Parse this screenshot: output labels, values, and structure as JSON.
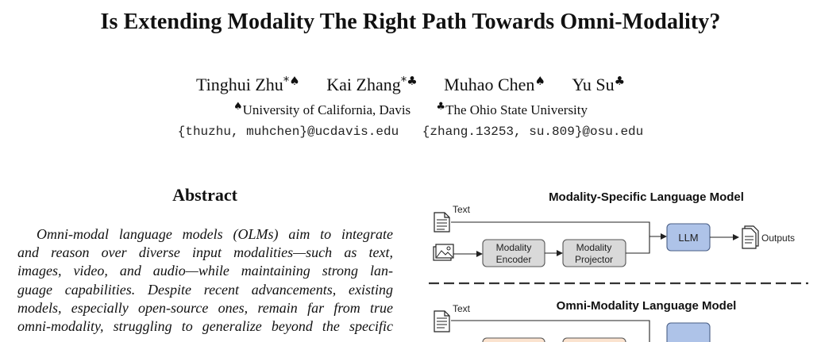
{
  "paper": {
    "title": "Is Extending Modality The Right Path Towards Omni-Modality?",
    "authors": [
      {
        "name": "Tinghui Zhu",
        "marks": "*♠"
      },
      {
        "name": "Kai Zhang",
        "marks": "*♣"
      },
      {
        "name": "Muhao Chen",
        "marks": "♠"
      },
      {
        "name": "Yu Su",
        "marks": "♣"
      }
    ],
    "affiliations": [
      {
        "mark": "♠",
        "name": "University of California, Davis"
      },
      {
        "mark": "♣",
        "name": "The Ohio State University"
      }
    ],
    "emails": [
      "{thuzhu, muhchen}@ucdavis.edu",
      "{zhang.13253, su.809}@osu.edu"
    ]
  },
  "abstract": {
    "heading": "Abstract",
    "lines": [
      "Omni-modal language models (OLMs) aim to integrate",
      "and reason over diverse input modalities—such as text,",
      "images, video, and audio—while maintaining strong lan-",
      "guage capabilities. Despite recent advancements, existing",
      "models, especially open-source ones, remain far from true",
      "omni-modality, struggling to generalize beyond the specific"
    ]
  },
  "figure": {
    "top_title": "Modality-Specific Language Model",
    "bottom_title": "Omni-Modality Language Model",
    "text_label": "Text",
    "encoder_label": [
      "Modality",
      "Encoder"
    ],
    "projector_label": [
      "Modality",
      "Projector"
    ],
    "llm_label": "LLM",
    "outputs_label": "Outputs",
    "colors": {
      "encoder_fill": "#d9d9d9",
      "llm_fill": "#aec3e8",
      "orange_fill": "#fbe3cf"
    }
  }
}
